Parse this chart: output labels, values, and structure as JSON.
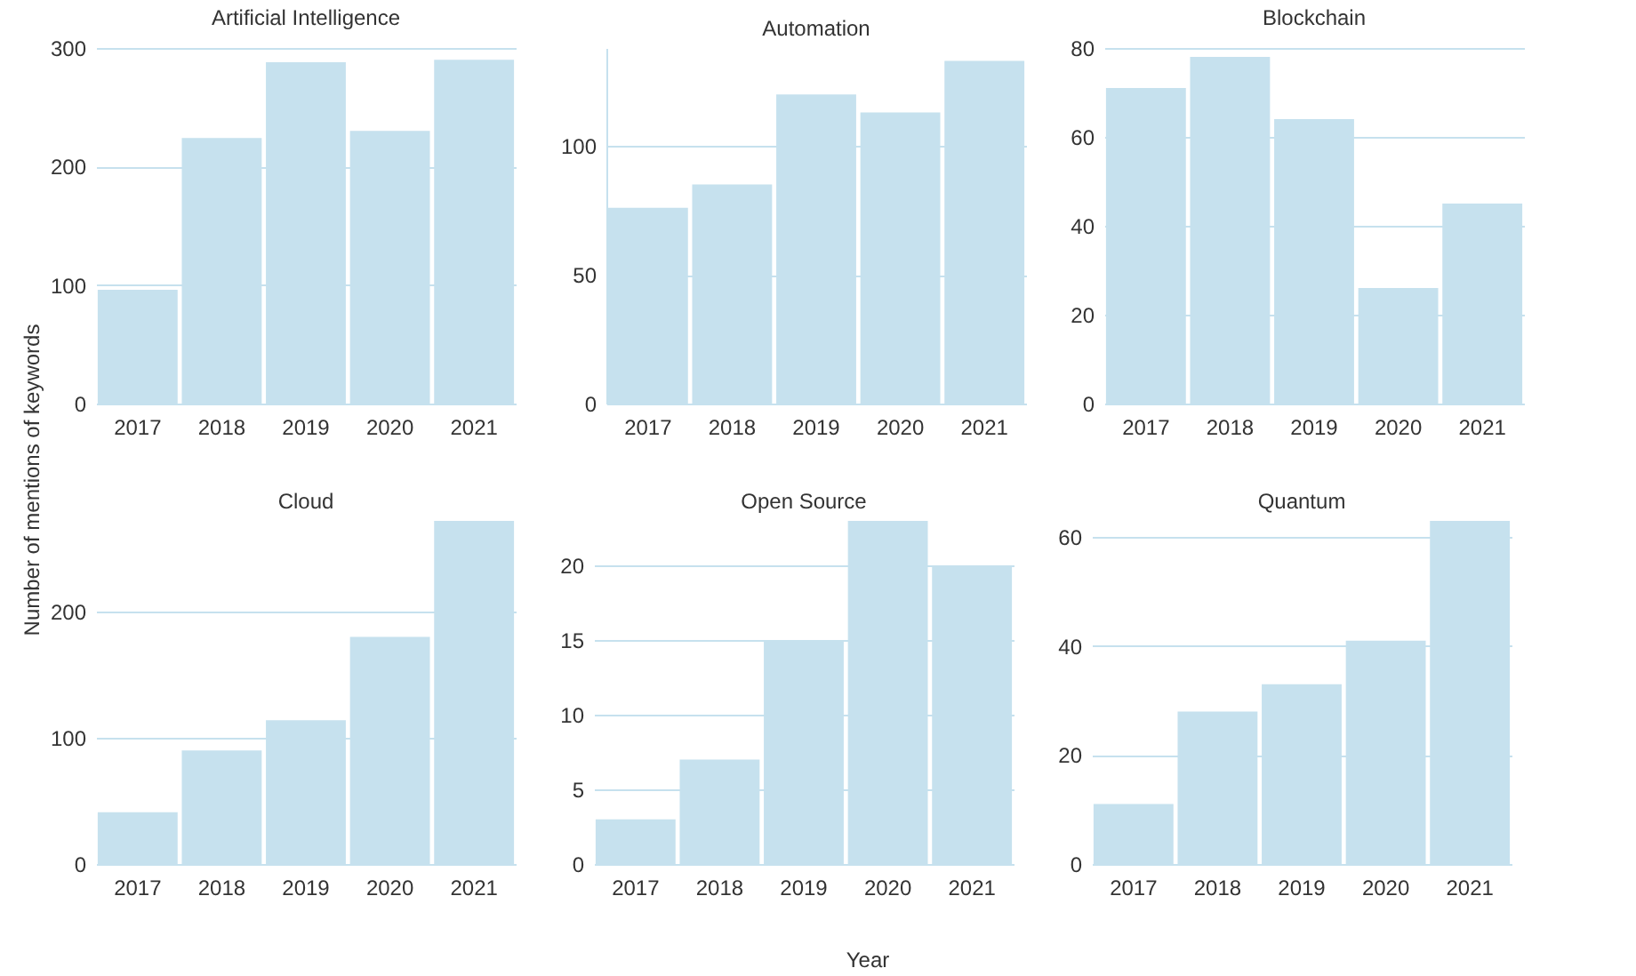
{
  "chart_data": [
    {
      "type": "bar",
      "title": "Artificial Intelligence",
      "ylabel": "Number of mentions of keywords",
      "categories": [
        "2017",
        "2018",
        "2019",
        "2020",
        "2021"
      ],
      "values": [
        96,
        224,
        288,
        230,
        290
      ],
      "color": "#c6e1ee",
      "ylim": [
        0,
        300
      ],
      "yticks": [
        0,
        100,
        200,
        300
      ],
      "grid": "y"
    },
    {
      "type": "bar",
      "title": "Automation",
      "categories": [
        "2017",
        "2018",
        "2019",
        "2020",
        "2021"
      ],
      "values": [
        76,
        85,
        120,
        113,
        133
      ],
      "color": "#c6e1ee",
      "ylim": [
        0,
        138
      ],
      "yticks": [
        0,
        50,
        100
      ],
      "grid": "y"
    },
    {
      "type": "bar",
      "title": "Blockchain",
      "categories": [
        "2017",
        "2018",
        "2019",
        "2020",
        "2021"
      ],
      "values": [
        71,
        78,
        64,
        26,
        45
      ],
      "color": "#c6e1ee",
      "ylim": [
        0,
        80
      ],
      "yticks": [
        0,
        20,
        40,
        60,
        80
      ],
      "grid": "y"
    },
    {
      "type": "bar",
      "title": "Cloud",
      "categories": [
        "2017",
        "2018",
        "2019",
        "2020",
        "2021"
      ],
      "values": [
        41,
        90,
        114,
        180,
        272
      ],
      "color": "#c6e1ee",
      "ylim": [
        0,
        272
      ],
      "yticks": [
        0,
        100,
        200
      ],
      "grid": "y"
    },
    {
      "type": "bar",
      "title": "Open Source",
      "xlabel": "Year",
      "categories": [
        "2017",
        "2018",
        "2019",
        "2020",
        "2021"
      ],
      "values": [
        3,
        7,
        15,
        23,
        20
      ],
      "color": "#c6e1ee",
      "ylim": [
        0,
        23
      ],
      "yticks": [
        0,
        5,
        10,
        15,
        20
      ],
      "grid": "y"
    },
    {
      "type": "bar",
      "title": "Quantum",
      "categories": [
        "2017",
        "2018",
        "2019",
        "2020",
        "2021"
      ],
      "values": [
        11,
        28,
        33,
        41,
        63
      ],
      "color": "#c6e1ee",
      "ylim": [
        0,
        63
      ],
      "yticks": [
        0,
        20,
        40,
        60
      ],
      "grid": "y"
    }
  ]
}
